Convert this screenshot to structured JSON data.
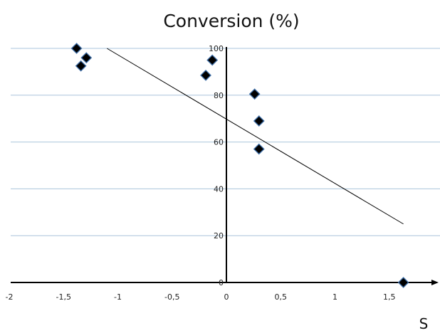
{
  "chart_data": {
    "type": "scatter",
    "title": "Conversion (%)",
    "xlabel": "S",
    "ylabel": "",
    "xlim": [
      -2,
      2
    ],
    "ylim": [
      0,
      100
    ],
    "x_ticks": [
      -2,
      -1.5,
      -1,
      -0.5,
      0,
      0.5,
      1,
      1.5
    ],
    "x_tick_labels": [
      "-2",
      "-1,5",
      "-1",
      "-0,5",
      "0",
      "0,5",
      "1",
      "1,5"
    ],
    "y_ticks": [
      0,
      20,
      40,
      60,
      80,
      100
    ],
    "y_tick_labels": [
      "0",
      "20",
      "40",
      "60",
      "80",
      "100"
    ],
    "grid": "horizontal",
    "legend": "none",
    "series": [
      {
        "x": [
          -1.38,
          -1.29,
          -1.34,
          -0.13,
          -0.19,
          0.26,
          0.3,
          0.3,
          1.63
        ],
        "y": [
          100,
          96,
          92.5,
          95,
          88.5,
          80.5,
          69,
          57,
          0
        ]
      }
    ],
    "trendline": {
      "x": [
        -1.1,
        1.63
      ],
      "y": [
        100,
        25
      ]
    },
    "colors": {
      "marker_fill": "#000000",
      "marker_edge": "#3f6fa8",
      "grid": "#a9c4dc",
      "trendline": "#000000"
    }
  }
}
